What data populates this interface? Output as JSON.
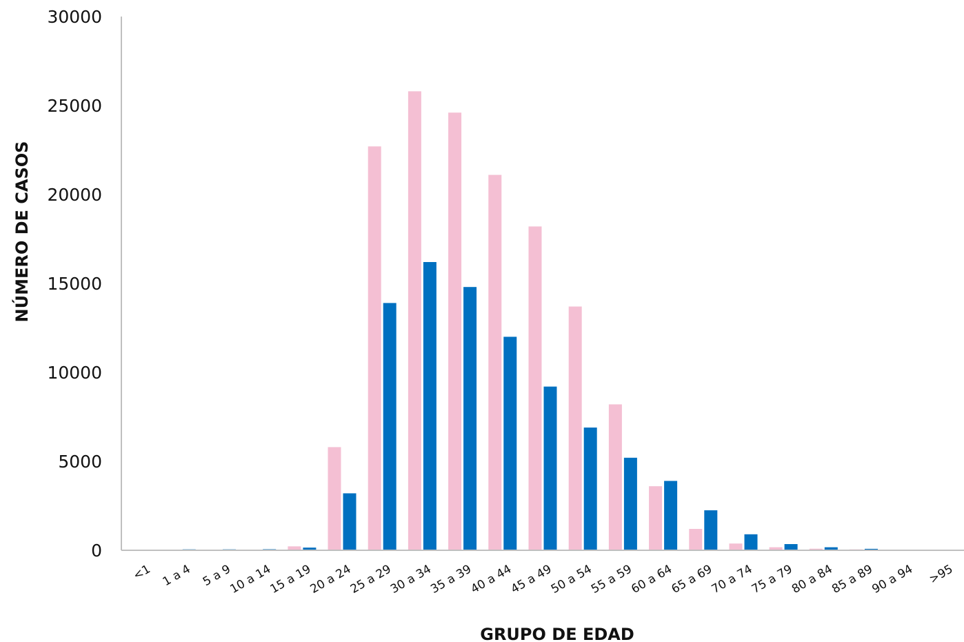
{
  "chart_data": {
    "type": "bar",
    "title": "",
    "xlabel": "GRUPO DE EDAD",
    "ylabel": "NÚMERO DE CASOS",
    "ylim": [
      0,
      30000
    ],
    "yticks": [
      0,
      5000,
      10000,
      15000,
      20000,
      25000,
      30000
    ],
    "grid": false,
    "legend": "none",
    "categories": [
      "<1",
      "1 a 4",
      "5 a 9",
      "10 a 14",
      "15 a 19",
      "20 a 24",
      "25 a 29",
      "30 a 34",
      "35 a 39",
      "40 a 44",
      "45 a 49",
      "50 a 54",
      "55 a 59",
      "60 a 64",
      "65 a 69",
      "70 a 74",
      "75 a 79",
      "80 a 84",
      "85 a 89",
      "90 a 94",
      ">95"
    ],
    "series": [
      {
        "color": "#f4bfd3",
        "values": [
          10,
          40,
          40,
          40,
          220,
          5800,
          22700,
          25800,
          24600,
          21100,
          18200,
          13700,
          8200,
          3600,
          1200,
          380,
          170,
          90,
          50,
          40,
          40
        ]
      },
      {
        "color": "#0070c0",
        "values": [
          10,
          50,
          50,
          60,
          150,
          3200,
          13900,
          16200,
          14800,
          12000,
          9200,
          6900,
          5200,
          3900,
          2250,
          900,
          350,
          170,
          80,
          40,
          40
        ]
      }
    ]
  },
  "colors": {
    "axis": "#bfbfbf",
    "text": "#111111",
    "background": "#ffffff"
  }
}
